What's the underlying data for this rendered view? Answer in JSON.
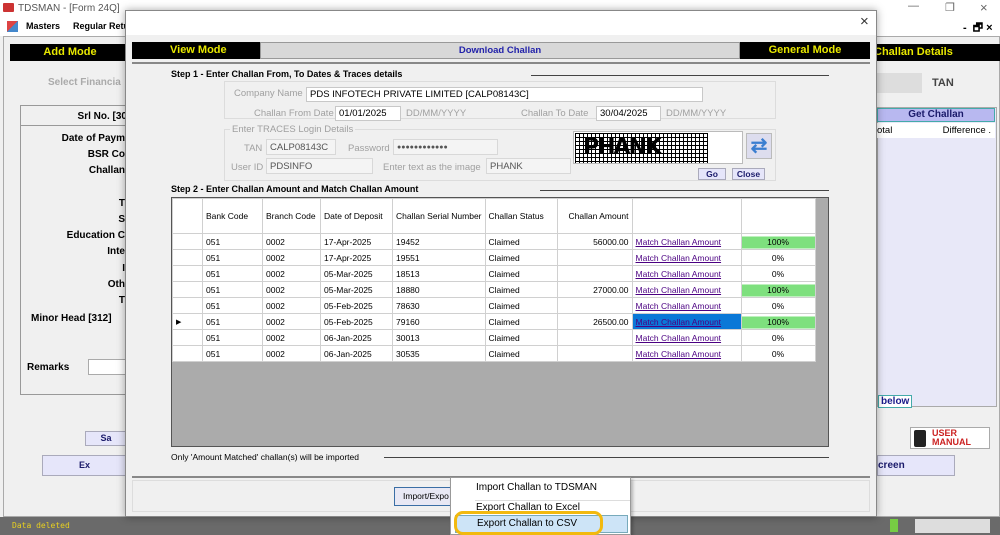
{
  "window": {
    "title": "TDSMAN - [Form 24Q]"
  },
  "menu": {
    "items": [
      "Masters",
      "Regular Retu"
    ]
  },
  "background": {
    "add_mode": "Add Mode",
    "select_financial": "Select Financia",
    "srl_no": "Srl No. [30",
    "labels": [
      "Date of Paym",
      "BSR Co",
      "Challan",
      "T",
      "S",
      "Education C",
      "Inte",
      "I",
      "Oth",
      "T"
    ],
    "minor_head": "Minor Head [312]",
    "remarks": "Remarks",
    "challan_details": "Challan Details",
    "tan": "TAN",
    "get_challan": "Get Challan",
    "col_total": "otal",
    "col_difference": "Difference .",
    "below": "below",
    "user_manual": "USER MANUAL",
    "screen_btn": "creen",
    "save_btn": "Sa",
    "ex_btn": "Ex",
    "status": "Data deleted"
  },
  "dialog": {
    "view_mode": "View Mode",
    "title": "Download Challan",
    "general_mode": "General Mode",
    "step1": "Step 1 - Enter Challan From, To Dates & Traces details",
    "company_label": "Company Name",
    "company_value": "PDS INFOTECH PRIVATE LIMITED [CALP08143C]",
    "from_label": "Challan From Date",
    "from_value": "01/01/2025",
    "date_format": "DD/MM/YYYY",
    "to_label": "Challan To Date",
    "to_value": "30/04/2025",
    "traces_group": "Enter TRACES Login Details",
    "tan_label": "TAN",
    "tan_value": "CALP08143C",
    "password_label": "Password",
    "password_value": "●●●●●●●●●●●●",
    "userid_label": "User ID",
    "userid_value": "PDSINFO",
    "captcha_label": "Enter text as the image",
    "captcha_value": "PHANK",
    "captcha_image_text": "PHANK",
    "go": "Go",
    "close": "Close",
    "step2": "Step 2 - Enter Challan Amount and Match Challan Amount",
    "columns": [
      "Bank Code",
      "Branch Code",
      "Date of Deposit",
      "Challan Serial Number",
      "Challan Status",
      "Challan Amount",
      "",
      ""
    ],
    "rows": [
      {
        "bank": "051",
        "branch": "0002",
        "date": "17-Apr-2025",
        "serial": "19452",
        "status": "Claimed",
        "amount": "56000.00",
        "link": "Match Challan Amount",
        "pct": "100%",
        "matched": true
      },
      {
        "bank": "051",
        "branch": "0002",
        "date": "17-Apr-2025",
        "serial": "19551",
        "status": "Claimed",
        "amount": "",
        "link": "Match Challan Amount",
        "pct": "0%",
        "matched": false
      },
      {
        "bank": "051",
        "branch": "0002",
        "date": "05-Mar-2025",
        "serial": "18513",
        "status": "Claimed",
        "amount": "",
        "link": "Match Challan Amount",
        "pct": "0%",
        "matched": false
      },
      {
        "bank": "051",
        "branch": "0002",
        "date": "05-Mar-2025",
        "serial": "18880",
        "status": "Claimed",
        "amount": "27000.00",
        "link": "Match Challan Amount",
        "pct": "100%",
        "matched": true
      },
      {
        "bank": "051",
        "branch": "0002",
        "date": "05-Feb-2025",
        "serial": "78630",
        "status": "Claimed",
        "amount": "",
        "link": "Match Challan Amount",
        "pct": "0%",
        "matched": false
      },
      {
        "bank": "051",
        "branch": "0002",
        "date": "05-Feb-2025",
        "serial": "79160",
        "status": "Claimed",
        "amount": "26500.00",
        "link": "Match Challan Amount",
        "pct": "100%",
        "matched": true,
        "current": true
      },
      {
        "bank": "051",
        "branch": "0002",
        "date": "06-Jan-2025",
        "serial": "30013",
        "status": "Claimed",
        "amount": "",
        "link": "Match Challan Amount",
        "pct": "0%",
        "matched": false
      },
      {
        "bank": "051",
        "branch": "0002",
        "date": "06-Jan-2025",
        "serial": "30535",
        "status": "Claimed",
        "amount": "",
        "link": "Match Challan Amount",
        "pct": "0%",
        "matched": false
      }
    ],
    "note": "Only 'Amount Matched' challan(s) will be imported",
    "import_export": "Import/Expo",
    "menu_items": [
      "Import Challan to TDSMAN",
      "Export Challan to Excel",
      "Export Challan to CSV"
    ]
  },
  "colors": {
    "matched": "#7ee07e",
    "selected": "#0a78d7",
    "highlight": "#f2b90f",
    "mode_text": "#e8e800"
  }
}
